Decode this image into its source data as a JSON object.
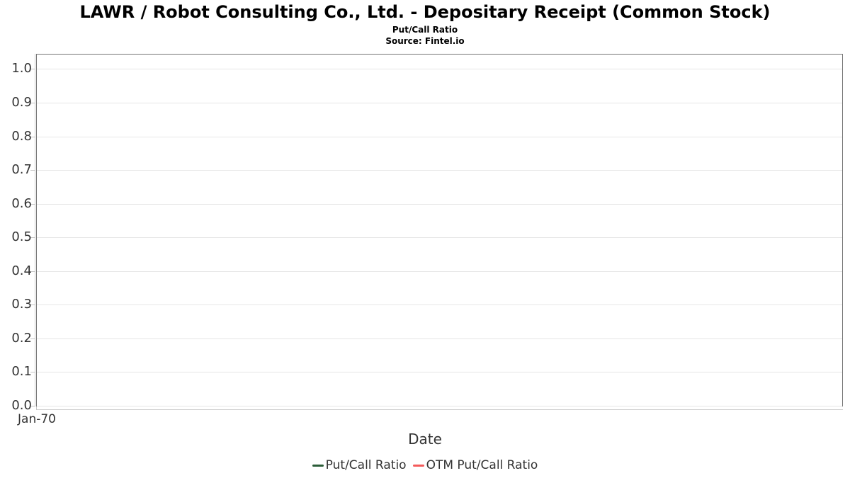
{
  "page": {
    "background": "#ffffff"
  },
  "chart_data": {
    "type": "line",
    "title": "LAWR / Robot Consulting Co., Ltd. - Depositary Receipt (Common Stock)",
    "subtitle": "Put/Call Ratio",
    "source": "Source: Fintel.io",
    "xlabel": "Date",
    "ylabel": "",
    "x_tick_labels": [
      "Jan-70"
    ],
    "y_tick_labels": [
      "0.0",
      "0.1",
      "0.2",
      "0.3",
      "0.4",
      "0.5",
      "0.6",
      "0.7",
      "0.8",
      "0.9",
      "1.0"
    ],
    "y_tick_values": [
      0,
      0.1,
      0.2,
      0.3,
      0.4,
      0.5,
      0.6,
      0.7,
      0.8,
      0.9,
      1.0
    ],
    "ylim": [
      0,
      1.045
    ],
    "grid": true,
    "grid_orientation": "horizontal",
    "legend_position": "bottom",
    "series": [
      {
        "name": "Put/Call Ratio",
        "color": "#2b5d38",
        "values": []
      },
      {
        "name": "OTM Put/Call Ratio",
        "color": "#f45b5b",
        "values": []
      }
    ],
    "colors": {
      "plot_border": "#767676",
      "gridline": "#e6e6e6",
      "tick": "#c6c6c6",
      "axis_line": "#cccccc",
      "label_text": "#333333",
      "title_text": "#000000"
    }
  }
}
